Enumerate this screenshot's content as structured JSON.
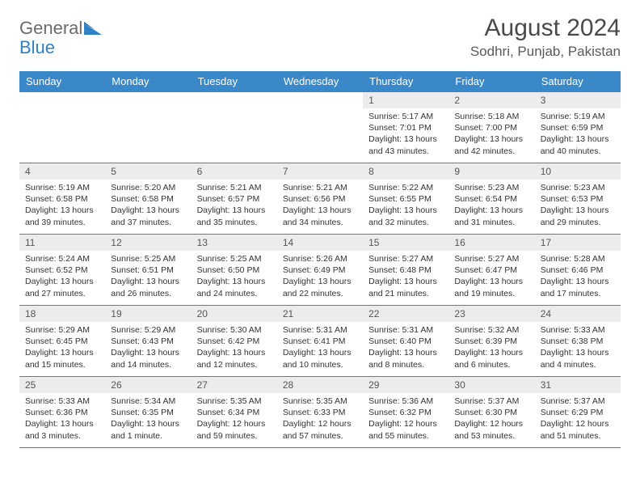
{
  "brand": {
    "part1": "General",
    "part2": "Blue"
  },
  "title": "August 2024",
  "location": "Sodhri, Punjab, Pakistan",
  "colors": {
    "header_bg": "#3a88c8",
    "header_text": "#ffffff",
    "daynum_bg": "#ececec",
    "border": "#3a88c8",
    "brand_gray": "#6b6b6b",
    "brand_blue": "#2f82c4"
  },
  "weekdays": [
    "Sunday",
    "Monday",
    "Tuesday",
    "Wednesday",
    "Thursday",
    "Friday",
    "Saturday"
  ],
  "weeks": [
    [
      {
        "empty": true
      },
      {
        "empty": true
      },
      {
        "empty": true
      },
      {
        "empty": true
      },
      {
        "day": "1",
        "sunrise": "Sunrise: 5:17 AM",
        "sunset": "Sunset: 7:01 PM",
        "daylight1": "Daylight: 13 hours",
        "daylight2": "and 43 minutes."
      },
      {
        "day": "2",
        "sunrise": "Sunrise: 5:18 AM",
        "sunset": "Sunset: 7:00 PM",
        "daylight1": "Daylight: 13 hours",
        "daylight2": "and 42 minutes."
      },
      {
        "day": "3",
        "sunrise": "Sunrise: 5:19 AM",
        "sunset": "Sunset: 6:59 PM",
        "daylight1": "Daylight: 13 hours",
        "daylight2": "and 40 minutes."
      }
    ],
    [
      {
        "day": "4",
        "sunrise": "Sunrise: 5:19 AM",
        "sunset": "Sunset: 6:58 PM",
        "daylight1": "Daylight: 13 hours",
        "daylight2": "and 39 minutes."
      },
      {
        "day": "5",
        "sunrise": "Sunrise: 5:20 AM",
        "sunset": "Sunset: 6:58 PM",
        "daylight1": "Daylight: 13 hours",
        "daylight2": "and 37 minutes."
      },
      {
        "day": "6",
        "sunrise": "Sunrise: 5:21 AM",
        "sunset": "Sunset: 6:57 PM",
        "daylight1": "Daylight: 13 hours",
        "daylight2": "and 35 minutes."
      },
      {
        "day": "7",
        "sunrise": "Sunrise: 5:21 AM",
        "sunset": "Sunset: 6:56 PM",
        "daylight1": "Daylight: 13 hours",
        "daylight2": "and 34 minutes."
      },
      {
        "day": "8",
        "sunrise": "Sunrise: 5:22 AM",
        "sunset": "Sunset: 6:55 PM",
        "daylight1": "Daylight: 13 hours",
        "daylight2": "and 32 minutes."
      },
      {
        "day": "9",
        "sunrise": "Sunrise: 5:23 AM",
        "sunset": "Sunset: 6:54 PM",
        "daylight1": "Daylight: 13 hours",
        "daylight2": "and 31 minutes."
      },
      {
        "day": "10",
        "sunrise": "Sunrise: 5:23 AM",
        "sunset": "Sunset: 6:53 PM",
        "daylight1": "Daylight: 13 hours",
        "daylight2": "and 29 minutes."
      }
    ],
    [
      {
        "day": "11",
        "sunrise": "Sunrise: 5:24 AM",
        "sunset": "Sunset: 6:52 PM",
        "daylight1": "Daylight: 13 hours",
        "daylight2": "and 27 minutes."
      },
      {
        "day": "12",
        "sunrise": "Sunrise: 5:25 AM",
        "sunset": "Sunset: 6:51 PM",
        "daylight1": "Daylight: 13 hours",
        "daylight2": "and 26 minutes."
      },
      {
        "day": "13",
        "sunrise": "Sunrise: 5:25 AM",
        "sunset": "Sunset: 6:50 PM",
        "daylight1": "Daylight: 13 hours",
        "daylight2": "and 24 minutes."
      },
      {
        "day": "14",
        "sunrise": "Sunrise: 5:26 AM",
        "sunset": "Sunset: 6:49 PM",
        "daylight1": "Daylight: 13 hours",
        "daylight2": "and 22 minutes."
      },
      {
        "day": "15",
        "sunrise": "Sunrise: 5:27 AM",
        "sunset": "Sunset: 6:48 PM",
        "daylight1": "Daylight: 13 hours",
        "daylight2": "and 21 minutes."
      },
      {
        "day": "16",
        "sunrise": "Sunrise: 5:27 AM",
        "sunset": "Sunset: 6:47 PM",
        "daylight1": "Daylight: 13 hours",
        "daylight2": "and 19 minutes."
      },
      {
        "day": "17",
        "sunrise": "Sunrise: 5:28 AM",
        "sunset": "Sunset: 6:46 PM",
        "daylight1": "Daylight: 13 hours",
        "daylight2": "and 17 minutes."
      }
    ],
    [
      {
        "day": "18",
        "sunrise": "Sunrise: 5:29 AM",
        "sunset": "Sunset: 6:45 PM",
        "daylight1": "Daylight: 13 hours",
        "daylight2": "and 15 minutes."
      },
      {
        "day": "19",
        "sunrise": "Sunrise: 5:29 AM",
        "sunset": "Sunset: 6:43 PM",
        "daylight1": "Daylight: 13 hours",
        "daylight2": "and 14 minutes."
      },
      {
        "day": "20",
        "sunrise": "Sunrise: 5:30 AM",
        "sunset": "Sunset: 6:42 PM",
        "daylight1": "Daylight: 13 hours",
        "daylight2": "and 12 minutes."
      },
      {
        "day": "21",
        "sunrise": "Sunrise: 5:31 AM",
        "sunset": "Sunset: 6:41 PM",
        "daylight1": "Daylight: 13 hours",
        "daylight2": "and 10 minutes."
      },
      {
        "day": "22",
        "sunrise": "Sunrise: 5:31 AM",
        "sunset": "Sunset: 6:40 PM",
        "daylight1": "Daylight: 13 hours",
        "daylight2": "and 8 minutes."
      },
      {
        "day": "23",
        "sunrise": "Sunrise: 5:32 AM",
        "sunset": "Sunset: 6:39 PM",
        "daylight1": "Daylight: 13 hours",
        "daylight2": "and 6 minutes."
      },
      {
        "day": "24",
        "sunrise": "Sunrise: 5:33 AM",
        "sunset": "Sunset: 6:38 PM",
        "daylight1": "Daylight: 13 hours",
        "daylight2": "and 4 minutes."
      }
    ],
    [
      {
        "day": "25",
        "sunrise": "Sunrise: 5:33 AM",
        "sunset": "Sunset: 6:36 PM",
        "daylight1": "Daylight: 13 hours",
        "daylight2": "and 3 minutes."
      },
      {
        "day": "26",
        "sunrise": "Sunrise: 5:34 AM",
        "sunset": "Sunset: 6:35 PM",
        "daylight1": "Daylight: 13 hours",
        "daylight2": "and 1 minute."
      },
      {
        "day": "27",
        "sunrise": "Sunrise: 5:35 AM",
        "sunset": "Sunset: 6:34 PM",
        "daylight1": "Daylight: 12 hours",
        "daylight2": "and 59 minutes."
      },
      {
        "day": "28",
        "sunrise": "Sunrise: 5:35 AM",
        "sunset": "Sunset: 6:33 PM",
        "daylight1": "Daylight: 12 hours",
        "daylight2": "and 57 minutes."
      },
      {
        "day": "29",
        "sunrise": "Sunrise: 5:36 AM",
        "sunset": "Sunset: 6:32 PM",
        "daylight1": "Daylight: 12 hours",
        "daylight2": "and 55 minutes."
      },
      {
        "day": "30",
        "sunrise": "Sunrise: 5:37 AM",
        "sunset": "Sunset: 6:30 PM",
        "daylight1": "Daylight: 12 hours",
        "daylight2": "and 53 minutes."
      },
      {
        "day": "31",
        "sunrise": "Sunrise: 5:37 AM",
        "sunset": "Sunset: 6:29 PM",
        "daylight1": "Daylight: 12 hours",
        "daylight2": "and 51 minutes."
      }
    ]
  ]
}
